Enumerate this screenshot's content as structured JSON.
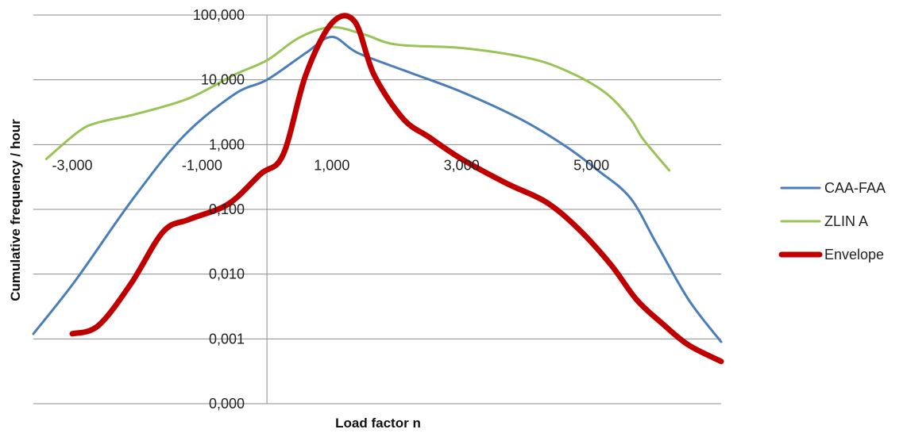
{
  "chart_data": {
    "type": "line",
    "title": "",
    "xlabel": "Load factor n",
    "ylabel": "Cumulative frequency / hour",
    "y_scale": "log",
    "xlim": [
      -3.6,
      7.0
    ],
    "ylim": [
      0.0001,
      100
    ],
    "grid": "horizontal",
    "legend_position": "right",
    "x_tick_values": [
      -3,
      -1,
      1,
      3,
      5
    ],
    "x_tick_labels": [
      "-3,000",
      "-1,000",
      "1,000",
      "3,000",
      "5,000"
    ],
    "y_tick_values": [
      100,
      10,
      1,
      0.1,
      0.01,
      0.001,
      0.0001
    ],
    "y_tick_labels": [
      "100,000",
      "10,000",
      "1,000",
      "0,100",
      "0,010",
      "0,001",
      "0,000"
    ],
    "series": [
      {
        "name": "CAA-FAA",
        "color": "#4a7ebb",
        "line_width": 3,
        "x": [
          -3.6,
          -2.95,
          -2.1,
          -1.3,
          -0.5,
          0.0,
          0.6,
          1.0,
          1.4,
          2.2,
          3.0,
          3.9,
          4.6,
          5.1,
          5.6,
          6.0,
          6.5,
          7.0
        ],
        "y": [
          0.0012,
          0.008,
          0.13,
          1.3,
          6.0,
          10.0,
          26.0,
          46.0,
          26.0,
          13.0,
          6.5,
          2.5,
          0.95,
          0.4,
          0.15,
          0.03,
          0.004,
          0.0009
        ]
      },
      {
        "name": "ZLIN A",
        "color": "#98c355",
        "line_width": 3,
        "x": [
          -3.4,
          -2.9,
          -2.6,
          -2.0,
          -1.2,
          -0.5,
          0.0,
          0.5,
          1.0,
          1.5,
          2.0,
          3.0,
          4.0,
          4.6,
          5.2,
          5.6,
          5.8,
          6.2
        ],
        "y": [
          0.6,
          1.6,
          2.2,
          3.0,
          5.2,
          12.0,
          20.0,
          45.0,
          65.0,
          50.0,
          35.0,
          31.0,
          22.0,
          14.0,
          6.5,
          2.5,
          1.2,
          0.4
        ]
      },
      {
        "name": "Envelope",
        "color": "#c00000",
        "line_width": 7,
        "x": [
          -3.0,
          -2.6,
          -2.1,
          -1.6,
          -1.2,
          -0.6,
          -0.1,
          0.25,
          0.6,
          1.0,
          1.35,
          1.65,
          2.1,
          2.5,
          3.0,
          3.7,
          4.3,
          4.8,
          5.3,
          5.7,
          6.1,
          6.5,
          7.0
        ],
        "y": [
          0.0012,
          0.0016,
          0.007,
          0.045,
          0.07,
          0.12,
          0.35,
          0.7,
          12.0,
          75.0,
          80.0,
          12.0,
          2.5,
          1.3,
          0.6,
          0.25,
          0.13,
          0.05,
          0.014,
          0.004,
          0.0017,
          0.0008,
          0.00045
        ]
      }
    ]
  }
}
